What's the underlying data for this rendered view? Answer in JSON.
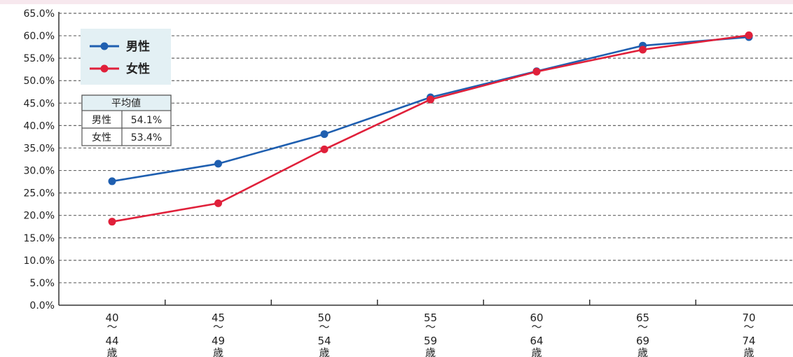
{
  "chart_data": {
    "type": "line",
    "categories": [
      [
        "40",
        "〜",
        "44",
        "歳"
      ],
      [
        "45",
        "〜",
        "49",
        "歳"
      ],
      [
        "50",
        "〜",
        "54",
        "歳"
      ],
      [
        "55",
        "〜",
        "59",
        "歳"
      ],
      [
        "60",
        "〜",
        "64",
        "歳"
      ],
      [
        "65",
        "〜",
        "69",
        "歳"
      ],
      [
        "70",
        "〜",
        "74",
        "歳"
      ]
    ],
    "ylim": [
      0,
      65
    ],
    "ytick_step": 5,
    "ytick_suffix": "%",
    "grid": true,
    "series": [
      {
        "name": "男性",
        "color": "#1f5fb0",
        "values": [
          27.6,
          31.5,
          38.1,
          46.3,
          52.1,
          57.8,
          59.7
        ]
      },
      {
        "name": "女性",
        "color": "#e0203a",
        "values": [
          18.6,
          22.7,
          34.7,
          45.8,
          52.0,
          56.9,
          60.1
        ]
      }
    ],
    "legend": {
      "placement": "top-left"
    },
    "average_table": {
      "header": "平均値",
      "rows": [
        {
          "label": "男性",
          "value": "54.1%"
        },
        {
          "label": "女性",
          "value": "53.4%"
        }
      ]
    }
  }
}
